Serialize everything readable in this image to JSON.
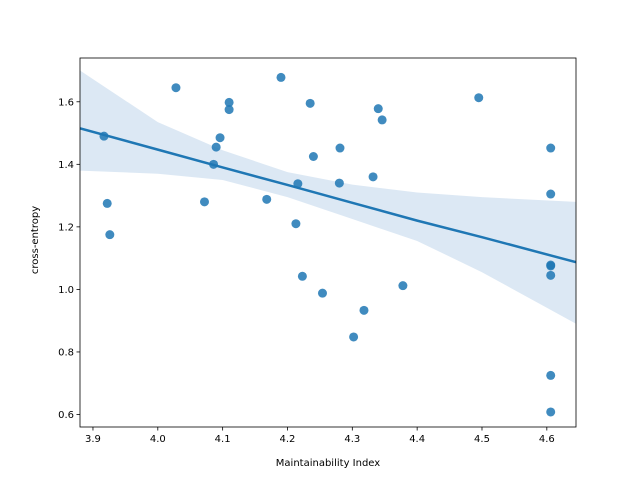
{
  "chart_data": {
    "type": "scatter",
    "title": "",
    "xlabel": "Maintainability Index",
    "ylabel": "cross-entropy",
    "xlim": [
      3.88,
      4.645
    ],
    "ylim": [
      0.56,
      1.74
    ],
    "x_ticks": [
      3.9,
      4.0,
      4.1,
      4.2,
      4.3,
      4.4,
      4.5,
      4.6
    ],
    "x_tick_labels": [
      "3.9",
      "4.0",
      "4.1",
      "4.2",
      "4.3",
      "4.4",
      "4.5",
      "4.6"
    ],
    "y_ticks": [
      0.6,
      0.8,
      1.0,
      1.2,
      1.4,
      1.6
    ],
    "y_tick_labels": [
      "0.6",
      "0.8",
      "1.0",
      "1.2",
      "1.4",
      "1.6"
    ],
    "grid": false,
    "colors": {
      "points": "#1f77b4",
      "line": "#1f77b4",
      "band": "#c5d9ec"
    },
    "series": [
      {
        "points": [
          {
            "x": 3.917,
            "y": 1.49
          },
          {
            "x": 3.922,
            "y": 1.275
          },
          {
            "x": 3.926,
            "y": 1.175
          },
          {
            "x": 4.028,
            "y": 1.645
          },
          {
            "x": 4.072,
            "y": 1.28
          },
          {
            "x": 4.086,
            "y": 1.4
          },
          {
            "x": 4.09,
            "y": 1.455
          },
          {
            "x": 4.096,
            "y": 1.485
          },
          {
            "x": 4.11,
            "y": 1.598
          },
          {
            "x": 4.11,
            "y": 1.575
          },
          {
            "x": 4.168,
            "y": 1.288
          },
          {
            "x": 4.19,
            "y": 1.678
          },
          {
            "x": 4.213,
            "y": 1.21
          },
          {
            "x": 4.216,
            "y": 1.338
          },
          {
            "x": 4.223,
            "y": 1.042
          },
          {
            "x": 4.235,
            "y": 1.595
          },
          {
            "x": 4.24,
            "y": 1.425
          },
          {
            "x": 4.254,
            "y": 0.988
          },
          {
            "x": 4.28,
            "y": 1.34
          },
          {
            "x": 4.281,
            "y": 1.452
          },
          {
            "x": 4.302,
            "y": 0.848
          },
          {
            "x": 4.318,
            "y": 0.933
          },
          {
            "x": 4.332,
            "y": 1.36
          },
          {
            "x": 4.34,
            "y": 1.578
          },
          {
            "x": 4.346,
            "y": 1.542
          },
          {
            "x": 4.378,
            "y": 1.012
          },
          {
            "x": 4.495,
            "y": 1.613
          },
          {
            "x": 4.606,
            "y": 1.452
          },
          {
            "x": 4.606,
            "y": 1.305
          },
          {
            "x": 4.606,
            "y": 1.078
          },
          {
            "x": 4.606,
            "y": 1.075
          },
          {
            "x": 4.606,
            "y": 1.045
          },
          {
            "x": 4.606,
            "y": 0.725
          },
          {
            "x": 4.606,
            "y": 0.608
          }
        ]
      }
    ],
    "regression": {
      "x": [
        3.88,
        4.0,
        4.1,
        4.2,
        4.3,
        4.4,
        4.5,
        4.645
      ],
      "y": [
        1.515,
        1.447,
        1.39,
        1.334,
        1.277,
        1.22,
        1.167,
        1.087
      ],
      "ci_lower": [
        1.38,
        1.37,
        1.35,
        1.295,
        1.225,
        1.155,
        1.055,
        0.89
      ],
      "ci_upper": [
        1.7,
        1.535,
        1.445,
        1.375,
        1.335,
        1.31,
        1.295,
        1.28
      ]
    }
  }
}
